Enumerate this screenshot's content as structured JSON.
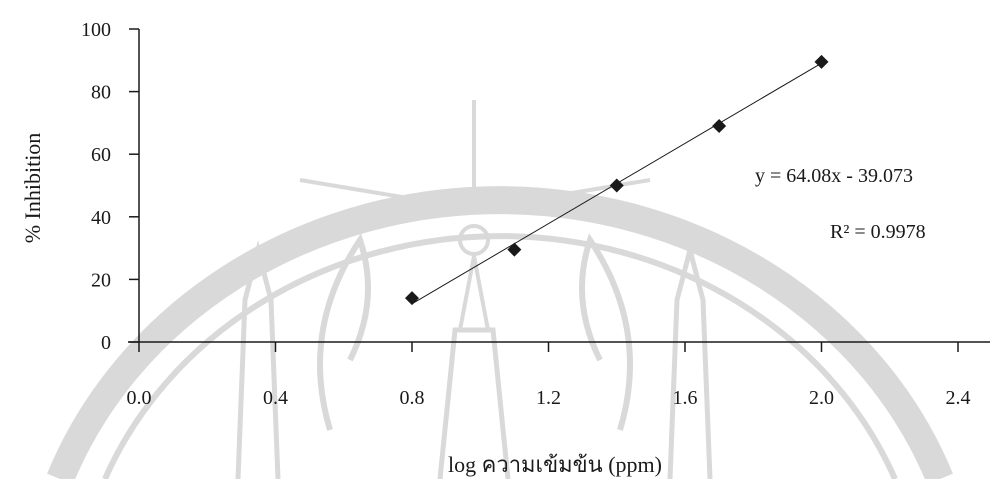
{
  "chart_data": {
    "type": "scatter",
    "xlabel": "log ความเข้มข้น (ppm)",
    "ylabel": "% Inhibition",
    "xlim": [
      0,
      2.4
    ],
    "ylim": [
      0,
      100
    ],
    "x_ticks": [
      "0.0",
      "0.4",
      "0.8",
      "1.2",
      "1.6",
      "2.0",
      "2.4"
    ],
    "y_ticks": [
      "0",
      "20",
      "40",
      "60",
      "80",
      "100"
    ],
    "x_tick_values": [
      0,
      0.4,
      0.8,
      1.2,
      1.6,
      2.0,
      2.4
    ],
    "y_tick_values": [
      0,
      20,
      40,
      60,
      80,
      100
    ],
    "series": [
      {
        "x": [
          0.8,
          1.1,
          1.4,
          1.7,
          2.0
        ],
        "y": [
          14,
          29.5,
          50,
          69,
          89.5
        ]
      }
    ],
    "trendline": {
      "slope": 64.08,
      "intercept": -39.073,
      "x_range": [
        0.8,
        2.0
      ],
      "equation": "y = 64.08x - 39.073",
      "r_squared": "R² = 0.9978"
    },
    "grid": false,
    "legend": "none",
    "marker": "diamond",
    "colors": {
      "marker": "#1a1a1a",
      "line": "#1a1a1a",
      "axis": "#1a1a1a",
      "watermark": "#d9d9d9"
    }
  }
}
